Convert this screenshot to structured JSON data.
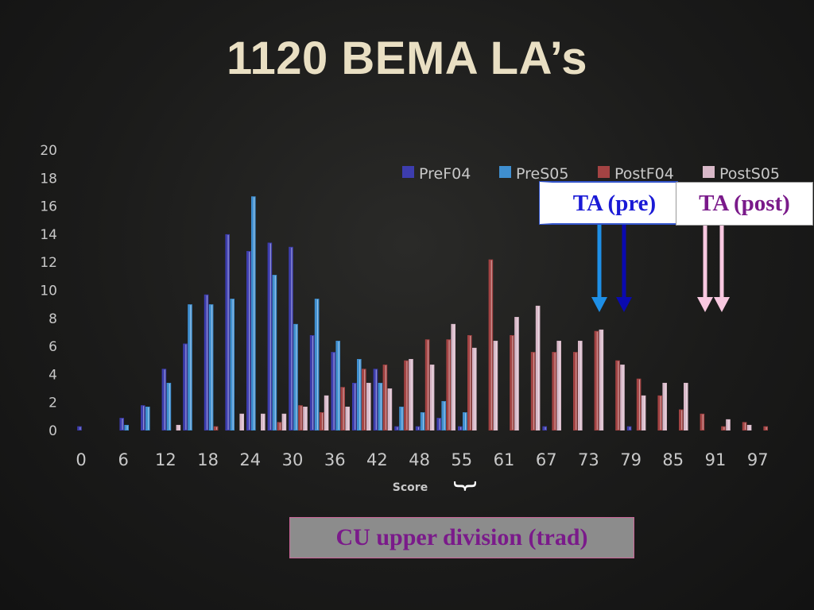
{
  "slide": {
    "title": "1120 BEMA LA’s"
  },
  "annotations": {
    "ta_pre": "TA (pre)",
    "ta_post": "TA (post)",
    "cu_upper": "CU upper division (trad)",
    "brace": "{"
  },
  "colors": {
    "PreF04": "#3d3dae",
    "PreS05": "#3f8fd0",
    "PostF04": "#a34343",
    "PostS05": "#d8b8c8",
    "axis_text": "#c8c8c8",
    "ta_pre_arrow_light": "#1e8fe6",
    "ta_pre_arrow_dark": "#0a0ab0",
    "ta_post_arrow": "#f8c8e0"
  },
  "chart_data": {
    "type": "bar",
    "xlabel": "Score",
    "ylabel": "",
    "ylim": [
      0,
      20
    ],
    "yticks": [
      0,
      2,
      4,
      6,
      8,
      10,
      12,
      14,
      16,
      18,
      20
    ],
    "xtick_labels": [
      "0",
      "6",
      "12",
      "18",
      "24",
      "30",
      "36",
      "42",
      "48",
      "55",
      "61",
      "67",
      "73",
      "79",
      "85",
      "91",
      "97"
    ],
    "grid": false,
    "legend_position": "top-right",
    "categories": [
      0,
      3,
      6,
      9,
      12,
      15,
      18,
      21,
      24,
      27,
      30,
      33,
      36,
      39,
      42,
      45,
      48,
      52,
      55,
      58,
      61,
      64,
      67,
      70,
      73,
      76,
      79,
      82,
      85,
      88,
      91,
      94,
      97
    ],
    "series": [
      {
        "name": "PreF04",
        "values": [
          0.3,
          0,
          0.9,
          1.8,
          4.4,
          6.2,
          9.7,
          14.0,
          12.8,
          13.4,
          13.1,
          6.8,
          5.6,
          3.4,
          4.4,
          0.3,
          0.3,
          0.9,
          0.3,
          0,
          0,
          0,
          0.3,
          0,
          0,
          0,
          0.3,
          0,
          0,
          0,
          0,
          0,
          0
        ]
      },
      {
        "name": "PreS05",
        "values": [
          0,
          0,
          0.4,
          1.7,
          3.4,
          9.0,
          9.0,
          9.4,
          16.7,
          11.1,
          7.6,
          9.4,
          6.4,
          5.1,
          3.4,
          1.7,
          1.3,
          2.1,
          1.3,
          0,
          0,
          0,
          0,
          0,
          0,
          0,
          0,
          0,
          0,
          0,
          0,
          0,
          0
        ]
      },
      {
        "name": "PostF04",
        "values": [
          0,
          0,
          0,
          0,
          0,
          0,
          0.3,
          0,
          0,
          0.6,
          1.8,
          1.3,
          3.1,
          4.4,
          4.7,
          5.0,
          6.5,
          6.5,
          6.8,
          12.2,
          6.8,
          5.6,
          5.6,
          5.6,
          7.1,
          5.0,
          3.7,
          2.5,
          1.5,
          1.2,
          0.3,
          0.6,
          0.3
        ]
      },
      {
        "name": "PostS05",
        "values": [
          0,
          0,
          0,
          0,
          0.4,
          0,
          0,
          1.2,
          1.2,
          1.2,
          1.7,
          2.5,
          1.7,
          3.4,
          3.0,
          5.1,
          4.7,
          7.6,
          5.9,
          6.4,
          8.1,
          8.9,
          6.4,
          6.4,
          7.2,
          4.7,
          2.5,
          3.4,
          3.4,
          0,
          0.8,
          0.4,
          0
        ]
      }
    ]
  }
}
